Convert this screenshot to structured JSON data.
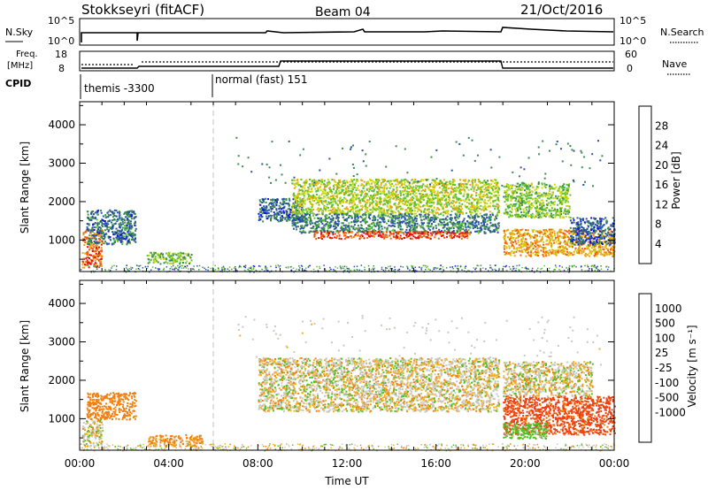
{
  "header": {
    "station": "Stokkseyri (fitACF)",
    "beam": "Beam 04",
    "date": "21/Oct/2016"
  },
  "strip_panels": {
    "nsky_label": "N.Sky",
    "nsky_ticks": [
      "10^5",
      "10^0"
    ],
    "nsearch_ticks": [
      "10^5",
      "10^0"
    ],
    "nsearch_label": "N.Search",
    "freq_label": "Freq.",
    "freq_unit": "[MHz]",
    "freq_ticks": [
      "18",
      "8"
    ],
    "nave_ticks": [
      "60",
      "0"
    ],
    "nave_label": "Nave",
    "cpid_label": "CPID",
    "cpid_modes": [
      "themis -3300",
      "normal (fast) 151"
    ]
  },
  "colors": {
    "power": [
      "#1010e0",
      "#2850a8",
      "#3a8a50",
      "#5cc030",
      "#c8d810",
      "#f0a010",
      "#f06010",
      "#e01010"
    ],
    "velocity": [
      "#e01010",
      "#f04010",
      "#f08010",
      "#f0b020",
      "#c8c8c0",
      "#c8c8c0",
      "#50c020",
      "#3a8a50",
      "#2860b0",
      "#1010e0"
    ],
    "grey": "#c8c8c0"
  },
  "chart_data": [
    {
      "type": "heatmap",
      "title": "Power",
      "ylabel": "Slant Range [km]",
      "xlim": [
        "00:00",
        "00:00"
      ],
      "ylim": [
        180,
        4600
      ],
      "yticks": [
        1000,
        2000,
        3000,
        4000
      ],
      "colorbar_label": "Power [dB]",
      "colorbar_ticks": [
        "4",
        "8",
        "12",
        "16",
        "20",
        "24",
        "28"
      ],
      "colorbar_range": [
        0,
        32
      ],
      "regions": [
        {
          "t0": 0.1,
          "t1": 1.0,
          "r0": 300,
          "r1": 1300,
          "value": 26
        },
        {
          "t0": 0.3,
          "t1": 2.5,
          "r0": 900,
          "r1": 1800,
          "value": 8
        },
        {
          "t0": 3.0,
          "t1": 5.0,
          "r0": 400,
          "r1": 700,
          "value": 14
        },
        {
          "t0": 8.0,
          "t1": 10.0,
          "r0": 1500,
          "r1": 2100,
          "value": 7
        },
        {
          "t0": 9.5,
          "t1": 18.8,
          "r0": 1700,
          "r1": 2600,
          "value": 17
        },
        {
          "t0": 9.5,
          "t1": 18.8,
          "r0": 1200,
          "r1": 1700,
          "value": 9
        },
        {
          "t0": 10.5,
          "t1": 17.5,
          "r0": 1050,
          "r1": 1250,
          "value": 28
        },
        {
          "t0": 19.0,
          "t1": 22.0,
          "r0": 1600,
          "r1": 2500,
          "value": 15
        },
        {
          "t0": 19.0,
          "t1": 24.0,
          "r0": 600,
          "r1": 1300,
          "value": 22
        },
        {
          "t0": 22.0,
          "t1": 24.0,
          "r0": 900,
          "r1": 1600,
          "value": 7
        }
      ]
    },
    {
      "type": "heatmap",
      "title": "Velocity",
      "ylabel": "Slant Range [km]",
      "xlabel": "Time UT",
      "xlim": [
        "00:00",
        "00:00"
      ],
      "xticks": [
        "00:00",
        "04:00",
        "08:00",
        "12:00",
        "16:00",
        "20:00",
        "00:00"
      ],
      "ylim": [
        180,
        4600
      ],
      "yticks": [
        1000,
        2000,
        3000,
        4000
      ],
      "colorbar_label": "Velocity [m s⁻¹]",
      "colorbar_ticks": [
        "1000",
        "500",
        "100",
        "25",
        "-25",
        "-100",
        "-500",
        "-1000"
      ],
      "regions": [
        {
          "t0": 0.1,
          "t1": 1.0,
          "r0": 300,
          "r1": 1000,
          "value": 0
        },
        {
          "t0": 0.3,
          "t1": 2.5,
          "r0": 1000,
          "r1": 1700,
          "value": -300
        },
        {
          "t0": 3.0,
          "t1": 5.5,
          "r0": 300,
          "r1": 600,
          "value": -150
        },
        {
          "t0": 8.0,
          "t1": 18.8,
          "r0": 1200,
          "r1": 2600,
          "value": 0
        },
        {
          "t0": 19.0,
          "t1": 24.0,
          "r0": 600,
          "r1": 1600,
          "value": -600
        },
        {
          "t0": 19.0,
          "t1": 21.0,
          "r0": 500,
          "r1": 900,
          "value": 200
        },
        {
          "t0": 19.0,
          "t1": 23.0,
          "r0": 1600,
          "r1": 2500,
          "value": 0
        }
      ]
    }
  ]
}
